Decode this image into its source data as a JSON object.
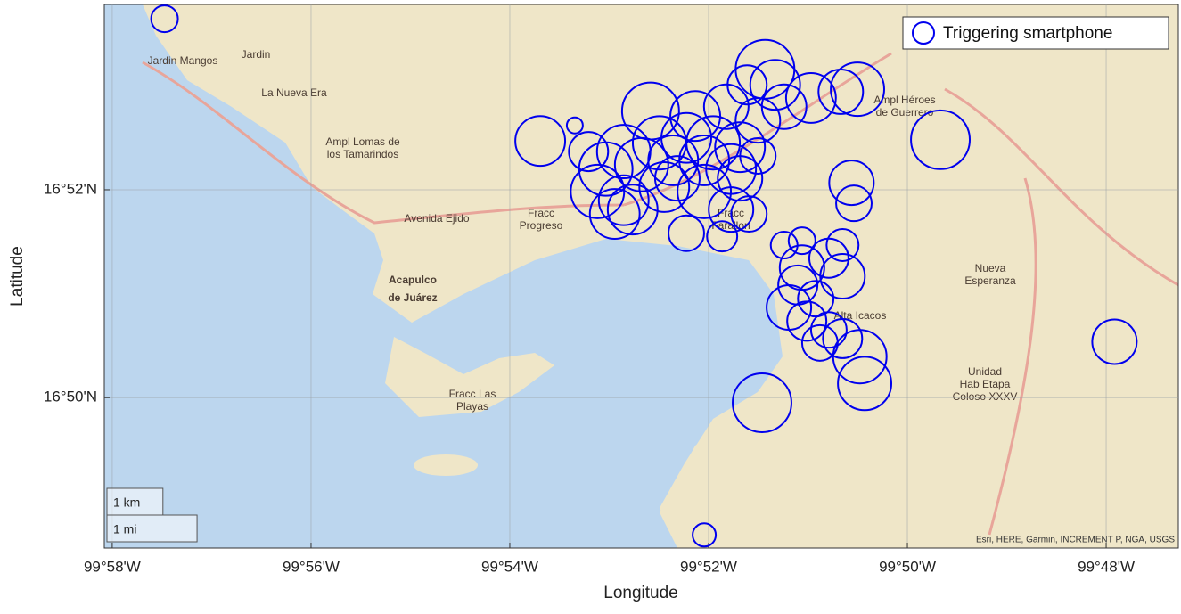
{
  "chart_data": {
    "type": "scatter",
    "xlabel": "Longitude",
    "ylabel": "Latitude",
    "xlim": [
      -99.968,
      -99.7879
    ],
    "ylim": [
      16.8092,
      16.8964
    ],
    "xticks": [
      {
        "value": -99.96667,
        "label": "99°58'W"
      },
      {
        "value": -99.93333,
        "label": "99°56'W"
      },
      {
        "value": -99.9,
        "label": "99°54'W"
      },
      {
        "value": -99.86667,
        "label": "99°52'W"
      },
      {
        "value": -99.83333,
        "label": "99°50'W"
      },
      {
        "value": -99.8,
        "label": "99°48'W"
      }
    ],
    "yticks": [
      {
        "value": 16.83333,
        "label": "16°50'N"
      },
      {
        "value": 16.86667,
        "label": "16°52'N"
      }
    ],
    "grid": true,
    "legend": "top-right",
    "series": [
      {
        "name": "Triggering smartphone",
        "color": "#0000ee",
        "x": [
          -99.9579,
          -99.8949,
          -99.8891,
          -99.8572,
          -99.8555,
          -99.8602,
          -99.8417,
          -99.8445,
          -99.8495,
          -99.854,
          -99.8764,
          -99.8689,
          -99.8637,
          -99.8584,
          -99.8278,
          -99.8809,
          -99.8749,
          -99.8704,
          -99.8659,
          -99.8614,
          -99.8839,
          -99.8779,
          -99.8726,
          -99.8674,
          -99.8629,
          -99.8853,
          -99.8809,
          -99.8741,
          -99.8674,
          -99.8614,
          -99.8427,
          -99.8423,
          -99.8824,
          -99.8794,
          -99.8629,
          -99.8704,
          -99.8644,
          -99.8599,
          -99.854,
          -99.851,
          -99.8442,
          -99.8465,
          -99.851,
          -99.8442,
          -99.8517,
          -99.8487,
          -99.8532,
          -99.8502,
          -99.8465,
          -99.848,
          -99.8442,
          -99.8413,
          -99.8405,
          -99.8577,
          -99.7986,
          -99.8674,
          -99.8868,
          -99.8719,
          -99.8584
        ],
        "y": [
          16.8941,
          16.8745,
          16.877,
          16.886,
          16.8835,
          16.8835,
          16.8828,
          16.8824,
          16.8814,
          16.88,
          16.8793,
          16.8785,
          16.88,
          16.8778,
          16.8747,
          16.8728,
          16.8742,
          16.875,
          16.8742,
          16.8735,
          16.87,
          16.8707,
          16.8714,
          16.8714,
          16.87,
          16.8664,
          16.865,
          16.8671,
          16.8664,
          16.8685,
          16.8678,
          16.8645,
          16.8628,
          16.8635,
          16.8635,
          16.8597,
          16.8592,
          16.8628,
          16.8578,
          16.8585,
          16.8578,
          16.8557,
          16.8542,
          16.8528,
          16.8514,
          16.8492,
          16.8478,
          16.8456,
          16.8442,
          16.8421,
          16.8428,
          16.8399,
          16.8356,
          16.8325,
          16.8423,
          16.8113,
          16.8728,
          16.8685,
          16.8721
        ],
        "sizes": [
          239,
          445,
          143,
          525,
          445,
          350,
          477,
          398,
          445,
          398,
          509,
          445,
          398,
          398,
          525,
          477,
          477,
          445,
          477,
          445,
          477,
          477,
          445,
          445,
          445,
          477,
          445,
          445,
          477,
          398,
          398,
          318,
          445,
          445,
          398,
          318,
          270,
          318,
          239,
          239,
          286,
          350,
          398,
          398,
          350,
          318,
          398,
          350,
          318,
          318,
          350,
          477,
          477,
          525,
          398,
          207,
          350,
          398,
          318
        ]
      }
    ],
    "scale_bars": [
      {
        "label": "1 km",
        "meters": 1000
      },
      {
        "label": "1 mi",
        "meters": 1609.344
      }
    ],
    "attribution": "Esri, HERE, Garmin, INCREMENT P, NGA, USGS",
    "place_labels": [
      [
        "Jardin Mangos"
      ],
      [
        "Jardin"
      ],
      [
        "La Nueva Era"
      ],
      [
        "Ampl Lomas de",
        "los Tamarindos"
      ],
      [
        "Fracc",
        "Progreso"
      ],
      [
        "Acapulco",
        "de Juárez"
      ],
      [
        "Fracc Las",
        "Playas"
      ],
      [
        "Alta Icacos"
      ],
      [
        "Ampl Héroes",
        "de Guerrero"
      ],
      [
        "Nueva",
        "Esperanza"
      ],
      [
        "Unidad",
        "Hab Etapa",
        "Coloso XXXV"
      ],
      [
        "Avenida Ejido"
      ],
      [
        "Fracc",
        "Farallon"
      ]
    ]
  }
}
